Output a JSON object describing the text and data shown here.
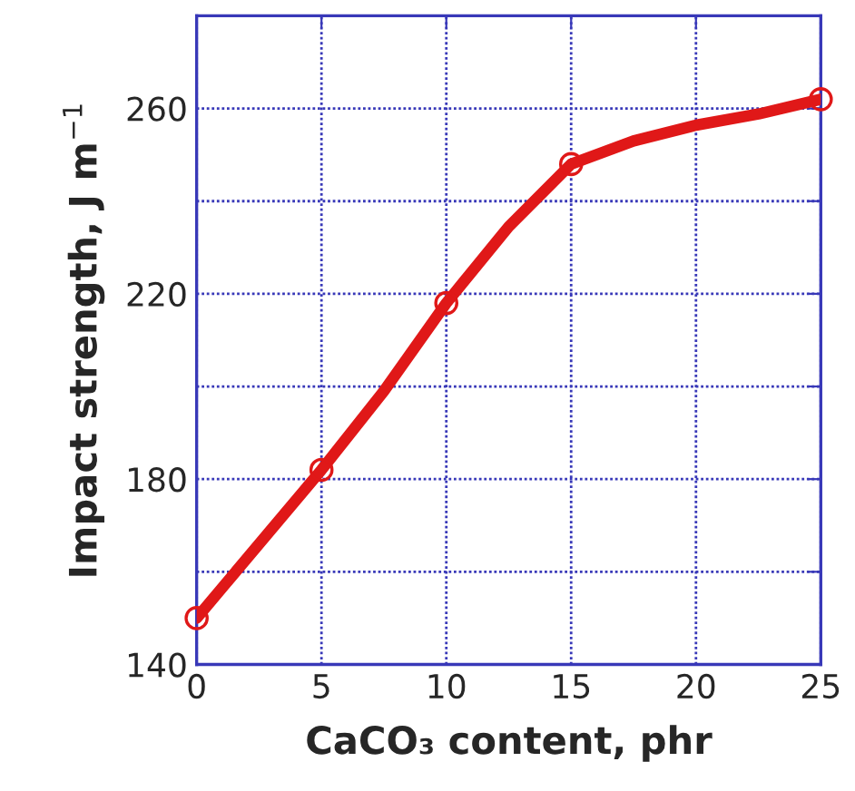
{
  "chart_data": {
    "type": "line",
    "xlabel": "CaCO₃ content, phr",
    "ylabel": "Impact strength, J m$^{−1}$",
    "xlim": [
      0,
      25
    ],
    "xticks": [
      0,
      5,
      10,
      15,
      20,
      25
    ],
    "ylim": [
      140,
      280
    ],
    "yticks": [
      140,
      {
        "value": 160,
        "label": null
      },
      180,
      {
        "value": 200,
        "label": null
      },
      220,
      {
        "value": 240,
        "label": null
      },
      260,
      {
        "value": 280,
        "label": null
      }
    ],
    "grid": true,
    "line_style": "solid",
    "series": [
      {
        "color": "#e01818",
        "marker": "none",
        "x": [
          0,
          5,
          7.5,
          10,
          12.5,
          15,
          17.5,
          20,
          22.5,
          25
        ],
        "values": [
          150,
          182,
          199,
          218,
          234.5,
          248,
          253,
          256.4,
          258.8,
          262
        ]
      },
      {
        "type": "scatter",
        "color": "#e01818",
        "marker": "circle",
        "x": [
          0,
          5,
          10,
          15,
          25
        ],
        "values": [
          150,
          182,
          218,
          248,
          262
        ]
      }
    ]
  }
}
